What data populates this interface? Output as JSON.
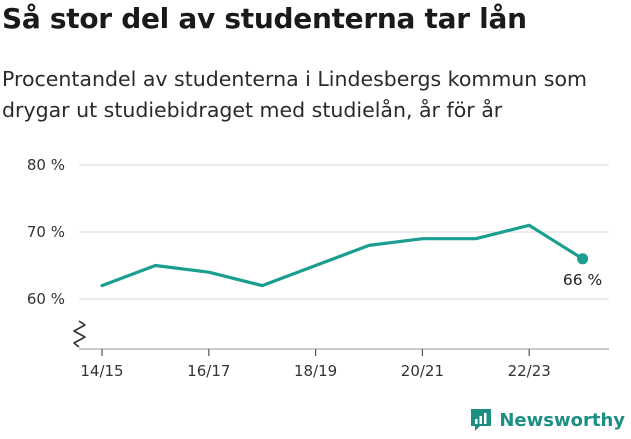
{
  "header": {
    "title": "Så stor del av studenterna tar lån",
    "subtitle": "Procentandel av studenterna i Lindesbergs kommun som drygar ut studiebidraget med studielån, år för år"
  },
  "chart_data": {
    "type": "line",
    "x": [
      "14/15",
      "15/16",
      "16/17",
      "17/18",
      "18/19",
      "19/20",
      "20/21",
      "21/22",
      "22/23",
      "23/24"
    ],
    "xticks": [
      "14/15",
      "16/17",
      "18/19",
      "20/21",
      "22/23"
    ],
    "series": [
      {
        "values": [
          62,
          65,
          64,
          62,
          65,
          68,
          69,
          69,
          71,
          66
        ],
        "color": "#1a9e8f"
      }
    ],
    "yticks": [
      60,
      70,
      80
    ],
    "ytick_labels": [
      "60 %",
      "70 %",
      "80 %"
    ],
    "ylim": [
      54,
      81
    ],
    "axis_break": true,
    "grid": true,
    "end_label": "66 %"
  },
  "branding": {
    "logo_text": "Newsworthy",
    "logo_icon": "newsworthy-logo-icon",
    "accent_color": "#1d8e84"
  }
}
